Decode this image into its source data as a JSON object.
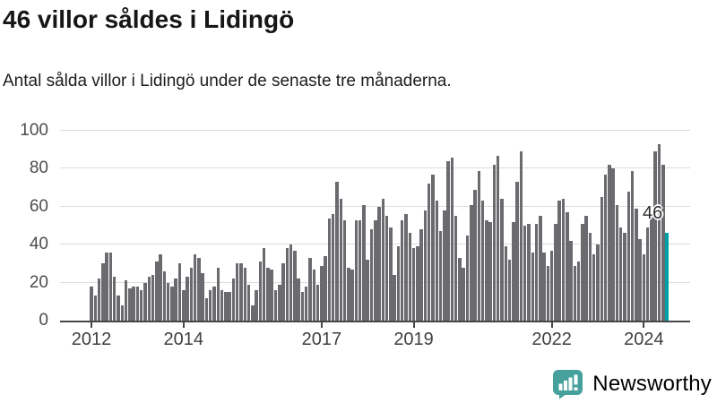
{
  "header": {
    "title": "46 villor såldes i Lidingö",
    "subtitle": "Antal sålda villor i Lidingö under de senaste tre månaderna."
  },
  "chart_data": {
    "type": "bar",
    "title": "46 villor såldes i Lidingö",
    "subtitle": "Antal sålda villor i Lidingö under de senaste tre månaderna.",
    "x_start": "2012-01",
    "x_end": "2024-07",
    "x_interval": "month",
    "values": [
      18,
      13,
      22,
      30,
      36,
      36,
      23,
      13,
      8,
      21,
      17,
      18,
      18,
      16,
      20,
      23,
      24,
      31,
      35,
      26,
      20,
      18,
      22,
      30,
      16,
      23,
      28,
      35,
      33,
      25,
      12,
      16,
      18,
      28,
      16,
      15,
      15,
      22,
      30,
      30,
      28,
      19,
      8,
      16,
      31,
      38,
      28,
      27,
      16,
      19,
      30,
      38,
      40,
      37,
      22,
      15,
      18,
      33,
      27,
      19,
      29,
      34,
      54,
      56,
      73,
      64,
      53,
      28,
      27,
      53,
      53,
      61,
      32,
      48,
      53,
      60,
      64,
      55,
      49,
      24,
      39,
      53,
      56,
      46,
      38,
      39,
      48,
      58,
      72,
      77,
      63,
      47,
      58,
      84,
      86,
      55,
      33,
      28,
      45,
      61,
      69,
      79,
      63,
      53,
      52,
      82,
      87,
      64,
      39,
      32,
      52,
      73,
      89,
      50,
      51,
      36,
      51,
      55,
      36,
      29,
      37,
      51,
      63,
      64,
      57,
      42,
      29,
      31,
      51,
      55,
      46,
      35,
      40,
      65,
      77,
      82,
      80,
      61,
      49,
      46,
      68,
      79,
      59,
      43,
      35,
      49,
      57,
      89,
      93,
      82,
      46
    ],
    "ylim": [
      0,
      100
    ],
    "y_ticks": [
      0,
      20,
      40,
      60,
      80,
      100
    ],
    "x_ticks": [
      {
        "label": "2012",
        "month_index": 0
      },
      {
        "label": "2014",
        "month_index": 24
      },
      {
        "label": "2017",
        "month_index": 60
      },
      {
        "label": "2019",
        "month_index": 84
      },
      {
        "label": "2022",
        "month_index": 120
      },
      {
        "label": "2024",
        "month_index": 144
      }
    ],
    "grid": "horizontal",
    "legend": "none",
    "highlight": {
      "index": 150,
      "label": "46"
    },
    "colors": {
      "bar": "#6a6a6f",
      "highlight_bar": "#00a1a6",
      "grid": "#dcdcdc",
      "axis": "#47474a"
    }
  },
  "footer": {
    "brand": "Newsworthy",
    "brand_color": "#46a09b",
    "logo_icon": "bar-chart-speech-bubble"
  }
}
